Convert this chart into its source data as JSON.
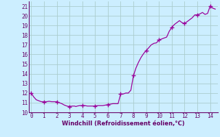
{
  "x": [
    0,
    0.2,
    0.4,
    0.6,
    0.8,
    1.0,
    1.2,
    1.4,
    1.6,
    1.8,
    2.0,
    2.2,
    2.4,
    2.6,
    2.8,
    3.0,
    3.2,
    3.4,
    3.5,
    3.6,
    3.8,
    4.0,
    4.2,
    4.4,
    4.6,
    4.8,
    5.0,
    5.2,
    5.4,
    5.6,
    5.8,
    6.0,
    6.2,
    6.4,
    6.6,
    6.8,
    7.0,
    7.2,
    7.4,
    7.6,
    7.8,
    8.0,
    8.2,
    8.4,
    8.6,
    8.8,
    9.0,
    9.2,
    9.4,
    9.6,
    9.8,
    10.0,
    10.2,
    10.4,
    10.6,
    10.8,
    11.0,
    11.2,
    11.4,
    11.6,
    11.8,
    12.0,
    12.2,
    12.4,
    12.6,
    12.8,
    13.0,
    13.2,
    13.4,
    13.6,
    13.8,
    14.0,
    14.2,
    14.4
  ],
  "y": [
    12.0,
    11.6,
    11.3,
    11.2,
    11.1,
    11.1,
    11.1,
    11.15,
    11.1,
    11.1,
    11.1,
    11.0,
    10.9,
    10.75,
    10.65,
    10.6,
    10.65,
    10.65,
    10.6,
    10.65,
    10.7,
    10.7,
    10.7,
    10.65,
    10.65,
    10.65,
    10.65,
    10.7,
    10.7,
    10.7,
    10.75,
    10.8,
    10.85,
    10.9,
    10.9,
    10.9,
    11.9,
    11.9,
    12.0,
    12.0,
    12.3,
    13.8,
    14.6,
    15.2,
    15.7,
    16.1,
    16.4,
    16.7,
    17.0,
    17.15,
    17.2,
    17.5,
    17.6,
    17.7,
    17.8,
    18.4,
    18.8,
    19.1,
    19.3,
    19.5,
    19.3,
    19.2,
    19.4,
    19.6,
    19.8,
    20.1,
    20.1,
    20.2,
    20.35,
    20.15,
    20.25,
    21.0,
    20.8,
    20.7
  ],
  "marker_x": [
    0,
    1.0,
    2.0,
    3.0,
    4.0,
    5.0,
    6.0,
    7.0,
    8.0,
    9.0,
    10.0,
    11.0,
    12.0,
    13.0,
    14.0
  ],
  "marker_y": [
    12.0,
    11.1,
    11.1,
    10.6,
    10.7,
    10.65,
    10.8,
    11.9,
    13.8,
    16.4,
    17.5,
    18.8,
    19.2,
    20.1,
    21.0
  ],
  "line_color": "#990099",
  "marker_color": "#990099",
  "bg_color": "#cceeff",
  "grid_color": "#aacccc",
  "axis_color": "#660066",
  "xlabel": "Windchill (Refroidissement éolien,°C)",
  "xlim": [
    -0.2,
    14.6
  ],
  "ylim": [
    10.0,
    21.5
  ],
  "yticks": [
    10,
    11,
    12,
    13,
    14,
    15,
    16,
    17,
    18,
    19,
    20,
    21
  ],
  "xticks": [
    0,
    1,
    2,
    3,
    4,
    5,
    6,
    7,
    8,
    9,
    10,
    11,
    12,
    13,
    14
  ]
}
